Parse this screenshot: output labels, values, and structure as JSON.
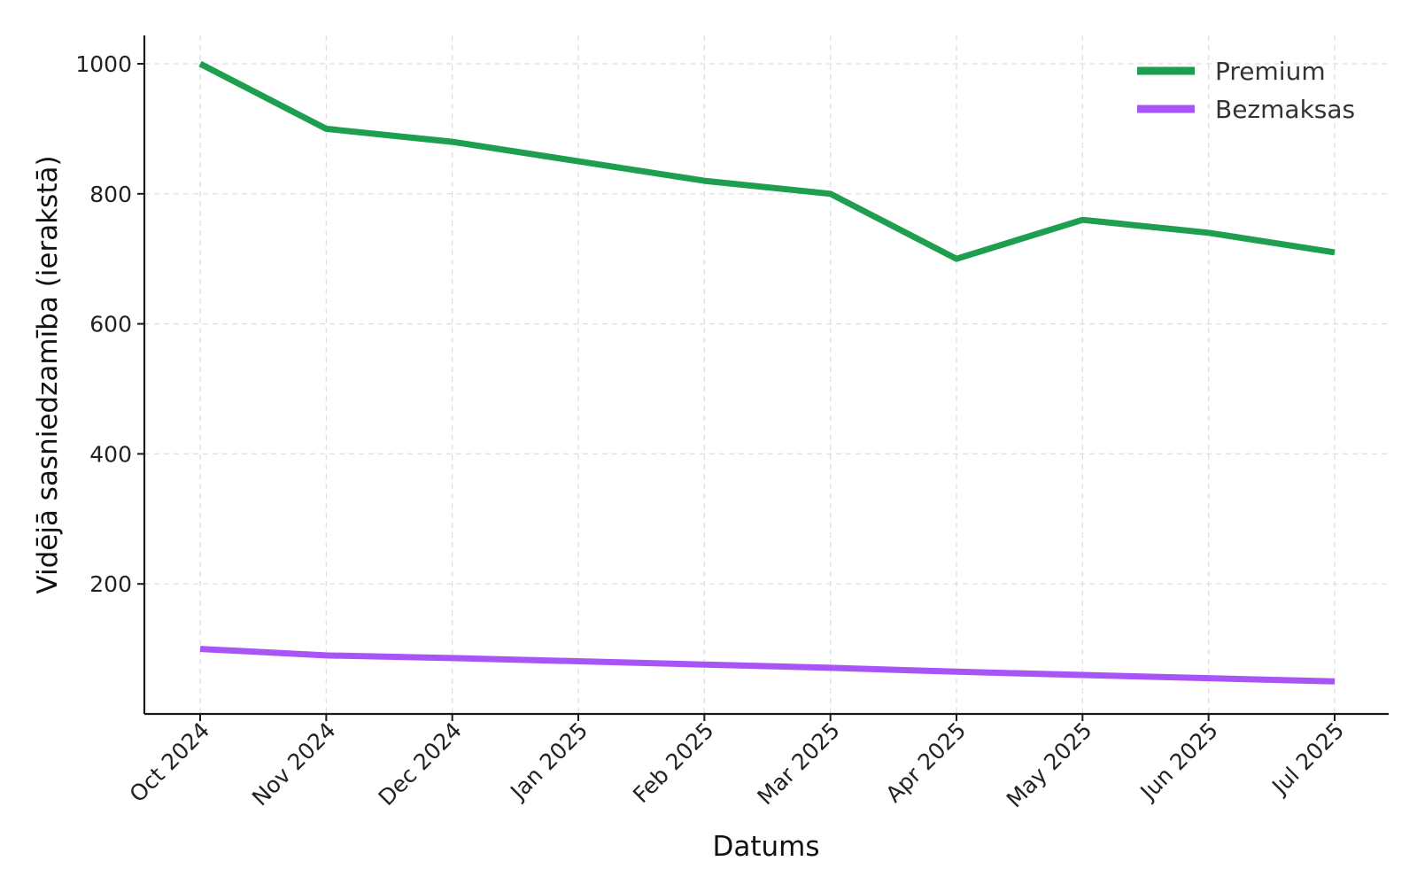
{
  "chart_data": {
    "type": "line",
    "categories": [
      "Oct 2024",
      "Nov 2024",
      "Dec 2024",
      "Jan 2025",
      "Feb 2025",
      "Mar 2025",
      "Apr 2025",
      "May 2025",
      "Jun 2025",
      "Jul 2025"
    ],
    "series": [
      {
        "name": "Premium",
        "color": "#1e9e4f",
        "values": [
          1000,
          900,
          880,
          850,
          820,
          800,
          700,
          760,
          740,
          710
        ]
      },
      {
        "name": "Bezmaksas",
        "color": "#a855f7",
        "values": [
          100,
          90,
          86,
          81,
          76,
          71,
          65,
          60,
          55,
          50
        ]
      }
    ],
    "xlabel": "Datums",
    "ylabel": "Vidējā sasniedzamība (ierakstā)",
    "ylim": [
      0,
      1050
    ],
    "yticks": [
      200,
      400,
      600,
      800,
      1000
    ],
    "grid": true,
    "legend_position": "top-right"
  }
}
